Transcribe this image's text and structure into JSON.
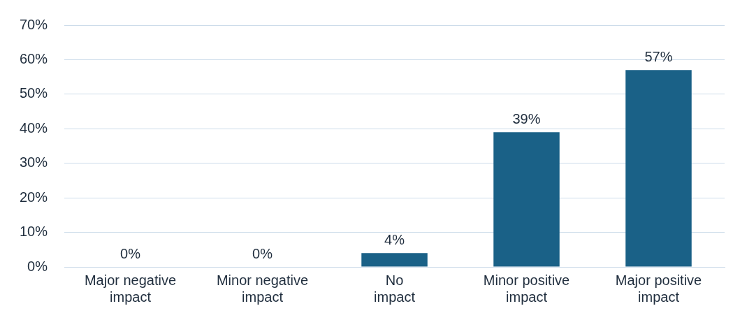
{
  "chart_data": {
    "type": "bar",
    "categories": [
      "Major negative impact",
      "Minor negative impact",
      "No impact",
      "Minor positive impact",
      "Major positive impact"
    ],
    "values": [
      0,
      0,
      4,
      39,
      57
    ],
    "value_labels": [
      "0%",
      "0%",
      "4%",
      "39%",
      "57%"
    ],
    "color": "#1a6187",
    "ylim": [
      0,
      70
    ],
    "yticks": [
      {
        "value": 0,
        "label": "0%"
      },
      {
        "value": 10,
        "label": "10%"
      },
      {
        "value": 20,
        "label": "20%"
      },
      {
        "value": 30,
        "label": "30%"
      },
      {
        "value": 40,
        "label": "40%"
      },
      {
        "value": 50,
        "label": "50%"
      },
      {
        "value": 60,
        "label": "60%"
      },
      {
        "value": 70,
        "label": "70%"
      }
    ],
    "grid": "y",
    "legend": false
  }
}
